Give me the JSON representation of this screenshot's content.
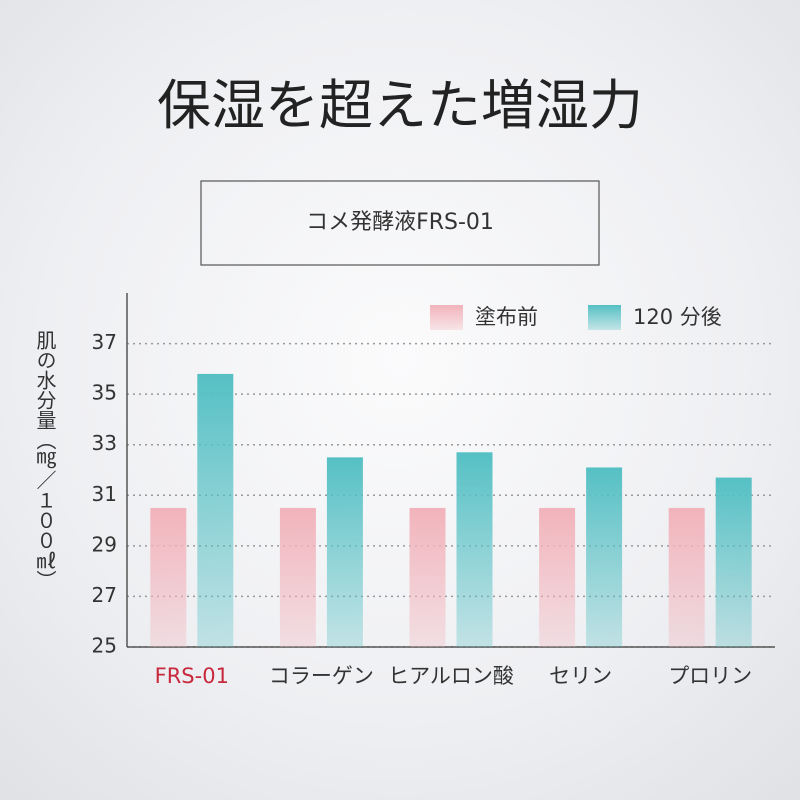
{
  "chart_data": {
    "type": "bar",
    "title": "保湿を超えた増湿力",
    "subtitle": "コメ発酵液FRS-01",
    "y_label": "肌の水分量（㎎／１００㎖）",
    "categories": [
      "FRS-01",
      "コラーゲン",
      "ヒアルロン酸",
      "セリン",
      "プロリン"
    ],
    "category_colors": [
      "#c8283c",
      "#333333",
      "#333333",
      "#333333",
      "#333333"
    ],
    "series": [
      {
        "name": "塗布前",
        "color": "#f2b3bb",
        "values": [
          30.5,
          30.5,
          30.5,
          30.5,
          30.5
        ]
      },
      {
        "name": "120 分後",
        "color": "#55c0c4",
        "values": [
          35.8,
          32.5,
          32.7,
          32.1,
          31.7
        ]
      }
    ],
    "ylim": [
      25,
      39
    ],
    "yticks": [
      25,
      27,
      29,
      31,
      33,
      35,
      37
    ],
    "grid": true,
    "legend": "top-right"
  }
}
